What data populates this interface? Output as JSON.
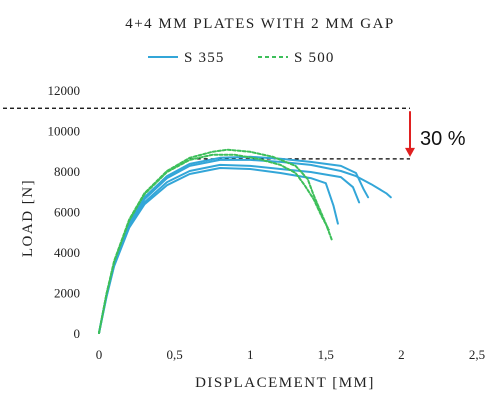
{
  "chart_data": {
    "type": "line",
    "title": "4+4 MM PLATES WITH 2 MM GAP",
    "xlabel": "DISPLACEMENT [MM]",
    "ylabel": "LOAD [N]",
    "xlim": [
      0,
      2.5
    ],
    "ylim": [
      0,
      12000
    ],
    "xticks": [
      "0",
      "0,5",
      "1",
      "1,5",
      "2",
      "2,5"
    ],
    "yticks": [
      "0",
      "2000",
      "4000",
      "6000",
      "8000",
      "10000",
      "12000"
    ],
    "grid": false,
    "legend_position": "top-center",
    "colors": {
      "S 355": "#33a6d8",
      "S 500": "#3dbf5a",
      "reference": "#000000",
      "arrow": "#e02020"
    },
    "series": [
      {
        "name": "S 355",
        "style": "solid",
        "values": [
          [
            0,
            0
          ],
          [
            0.05,
            1800
          ],
          [
            0.1,
            3300
          ],
          [
            0.2,
            5200
          ],
          [
            0.3,
            6350
          ],
          [
            0.45,
            7300
          ],
          [
            0.6,
            7850
          ],
          [
            0.8,
            8150
          ],
          [
            1.0,
            8100
          ],
          [
            1.2,
            7900
          ],
          [
            1.4,
            7650
          ],
          [
            1.5,
            7400
          ],
          [
            1.55,
            6300
          ],
          [
            1.58,
            5400
          ]
        ]
      },
      {
        "name": "S 355",
        "style": "solid",
        "values": [
          [
            0,
            0
          ],
          [
            0.05,
            1850
          ],
          [
            0.1,
            3350
          ],
          [
            0.2,
            5300
          ],
          [
            0.3,
            6450
          ],
          [
            0.45,
            7450
          ],
          [
            0.6,
            8000
          ],
          [
            0.8,
            8300
          ],
          [
            1.0,
            8250
          ],
          [
            1.2,
            8100
          ],
          [
            1.4,
            7950
          ],
          [
            1.6,
            7700
          ],
          [
            1.68,
            7200
          ],
          [
            1.72,
            6450
          ]
        ]
      },
      {
        "name": "S 355",
        "style": "solid",
        "values": [
          [
            0,
            0
          ],
          [
            0.05,
            1900
          ],
          [
            0.1,
            3400
          ],
          [
            0.2,
            5400
          ],
          [
            0.3,
            6600
          ],
          [
            0.45,
            7650
          ],
          [
            0.6,
            8250
          ],
          [
            0.8,
            8550
          ],
          [
            1.0,
            8550
          ],
          [
            1.2,
            8450
          ],
          [
            1.4,
            8300
          ],
          [
            1.6,
            8000
          ],
          [
            1.7,
            7750
          ],
          [
            1.8,
            7350
          ],
          [
            1.9,
            6900
          ],
          [
            1.93,
            6700
          ]
        ]
      },
      {
        "name": "S 355",
        "style": "solid",
        "values": [
          [
            0,
            0
          ],
          [
            0.05,
            1900
          ],
          [
            0.1,
            3450
          ],
          [
            0.2,
            5450
          ],
          [
            0.3,
            6700
          ],
          [
            0.45,
            7750
          ],
          [
            0.6,
            8350
          ],
          [
            0.8,
            8650
          ],
          [
            1.0,
            8700
          ],
          [
            1.2,
            8600
          ],
          [
            1.4,
            8450
          ],
          [
            1.6,
            8250
          ],
          [
            1.7,
            7900
          ],
          [
            1.75,
            7100
          ],
          [
            1.78,
            6700
          ]
        ]
      },
      {
        "name": "S 500",
        "style": "dashed",
        "values": [
          [
            0,
            0
          ],
          [
            0.05,
            1950
          ],
          [
            0.1,
            3550
          ],
          [
            0.2,
            5600
          ],
          [
            0.3,
            6900
          ],
          [
            0.45,
            8000
          ],
          [
            0.6,
            8650
          ],
          [
            0.75,
            8950
          ],
          [
            0.85,
            9050
          ],
          [
            1.0,
            8950
          ],
          [
            1.15,
            8700
          ],
          [
            1.3,
            8250
          ],
          [
            1.38,
            7600
          ],
          [
            1.42,
            6800
          ],
          [
            1.5,
            5400
          ],
          [
            1.54,
            4600
          ]
        ]
      },
      {
        "name": "S 500",
        "style": "dashed",
        "values": [
          [
            0,
            0
          ],
          [
            0.05,
            1950
          ],
          [
            0.1,
            3500
          ],
          [
            0.2,
            5550
          ],
          [
            0.3,
            6850
          ],
          [
            0.45,
            7950
          ],
          [
            0.6,
            8550
          ],
          [
            0.75,
            8800
          ],
          [
            0.9,
            8800
          ],
          [
            1.05,
            8600
          ],
          [
            1.2,
            8300
          ],
          [
            1.3,
            7900
          ],
          [
            1.36,
            7300
          ],
          [
            1.42,
            6600
          ],
          [
            1.47,
            5800
          ],
          [
            1.52,
            5100
          ]
        ]
      }
    ],
    "reference_lines": [
      {
        "y": 11100,
        "x_start": 0.0,
        "x_end": 2.05,
        "style": "dashed"
      },
      {
        "y": 8600,
        "x_start": 0.6,
        "x_end": 2.05,
        "style": "dashed"
      }
    ],
    "annotation": {
      "text": "30 %",
      "arrow_from_y": 11100,
      "arrow_to_y": 8600,
      "x": 2.05
    }
  }
}
